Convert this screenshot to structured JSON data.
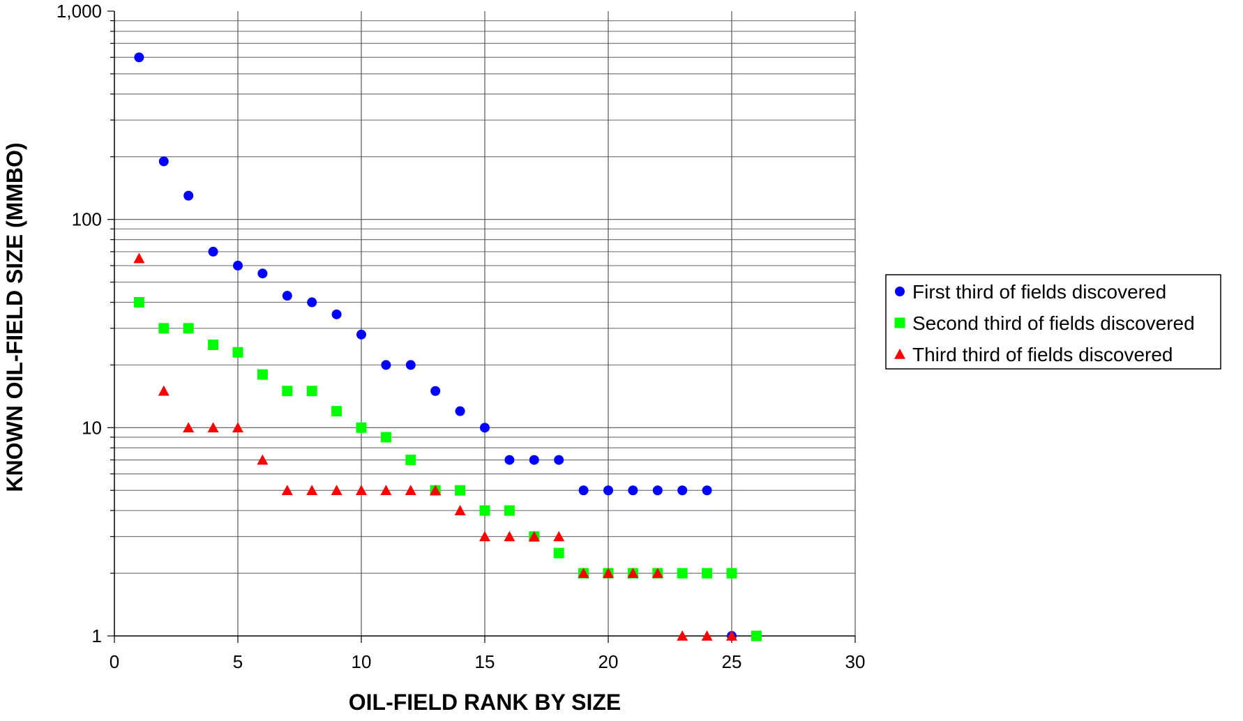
{
  "chart_data": {
    "type": "scatter",
    "title": "",
    "xlabel": "OIL-FIELD RANK BY SIZE",
    "ylabel": "KNOWN OIL-FIELD SIZE (MMBO)",
    "xlim": [
      0,
      30
    ],
    "ylim": [
      1,
      1000
    ],
    "yscale": "log",
    "x_ticks": [
      "0",
      "5",
      "10",
      "15",
      "20",
      "25",
      "30"
    ],
    "x_tick_values": [
      0,
      5,
      10,
      15,
      20,
      25,
      30
    ],
    "y_ticks": [
      "1",
      "10",
      "100",
      "1,000"
    ],
    "y_tick_values": [
      1,
      10,
      100,
      1000
    ],
    "grid": true,
    "legend_position": "right",
    "series": [
      {
        "name": "First third of fields discovered",
        "marker": "circle",
        "color": "#0000ff",
        "x": [
          1,
          2,
          3,
          4,
          5,
          6,
          7,
          8,
          9,
          10,
          11,
          12,
          13,
          14,
          15,
          16,
          17,
          18,
          19,
          20,
          21,
          22,
          23,
          24,
          25
        ],
        "y": [
          600,
          190,
          130,
          70,
          60,
          55,
          43,
          40,
          35,
          28,
          20,
          20,
          15,
          12,
          10,
          7,
          7,
          7,
          5,
          5,
          5,
          5,
          5,
          5,
          1
        ]
      },
      {
        "name": "Second third of fields discovered",
        "marker": "square",
        "color": "#00ff00",
        "x": [
          1,
          2,
          3,
          4,
          5,
          6,
          7,
          8,
          9,
          10,
          11,
          12,
          13,
          14,
          15,
          16,
          17,
          18,
          19,
          20,
          21,
          22,
          23,
          24,
          25,
          26
        ],
        "y": [
          40,
          30,
          30,
          25,
          23,
          18,
          15,
          15,
          12,
          10,
          9,
          7,
          5,
          5,
          4,
          4,
          3,
          2.5,
          2,
          2,
          2,
          2,
          2,
          2,
          2,
          1
        ]
      },
      {
        "name": "Third third of fields discovered",
        "marker": "triangle",
        "color": "#ff0000",
        "x": [
          1,
          2,
          3,
          4,
          5,
          6,
          7,
          8,
          9,
          10,
          11,
          12,
          13,
          14,
          15,
          16,
          17,
          18,
          19,
          20,
          21,
          22,
          23,
          24,
          25
        ],
        "y": [
          65,
          15,
          10,
          10,
          10,
          7,
          5,
          5,
          5,
          5,
          5,
          5,
          5,
          4,
          3,
          3,
          3,
          3,
          2,
          2,
          2,
          2,
          1,
          1,
          1
        ]
      }
    ]
  }
}
